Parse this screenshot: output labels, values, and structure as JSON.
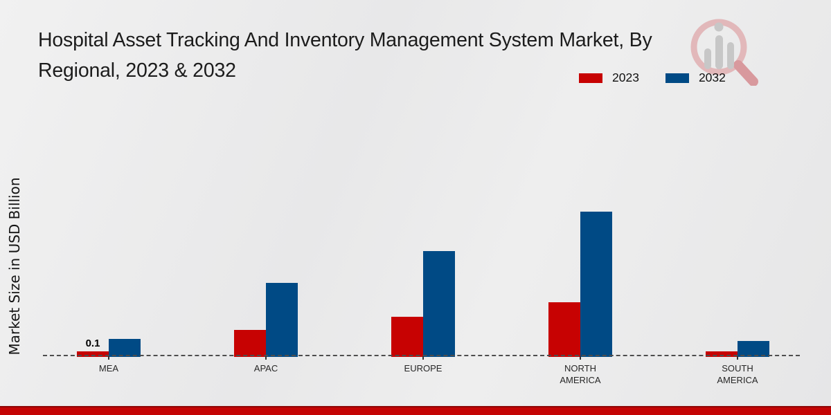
{
  "title": {
    "line1": "Hospital Asset Tracking And Inventory Management System Market, By",
    "line2": "Regional, 2023 & 2032"
  },
  "legend": {
    "items": [
      {
        "label": "2023",
        "color": "#c70202"
      },
      {
        "label": "2032",
        "color": "#004a85"
      }
    ]
  },
  "colors": {
    "bar_2023": "#c70202",
    "bar_2032": "#004a85",
    "bottom_strip": "#c40404",
    "baseline": "#4d4d4d",
    "watermark_ring": "#e2b8ba",
    "watermark_bars": "#c7c7c7"
  },
  "chart_data": {
    "type": "bar",
    "title": "Hospital Asset Tracking And Inventory Management System Market, By Regional, 2023 & 2032",
    "xlabel": "",
    "ylabel": "Market Size in USD Billion",
    "categories": [
      "MEA",
      "APAC",
      "EUROPE",
      "NORTH\nAMERICA",
      "SOUTH\nAMERICA"
    ],
    "series": [
      {
        "name": "2023",
        "color": "#c70202",
        "values": [
          0.1,
          0.47,
          0.69,
          0.94,
          0.1
        ]
      },
      {
        "name": "2032",
        "color": "#004a85",
        "values": [
          0.31,
          1.28,
          1.82,
          2.5,
          0.28
        ]
      }
    ],
    "data_labels": [
      {
        "series": "2023",
        "category": "MEA",
        "text": "0.1"
      }
    ],
    "legend_position": "top-right",
    "grid": false,
    "y_axis_ticks_visible": false,
    "baseline_style": "dashed",
    "ylim": [
      0,
      3
    ]
  }
}
